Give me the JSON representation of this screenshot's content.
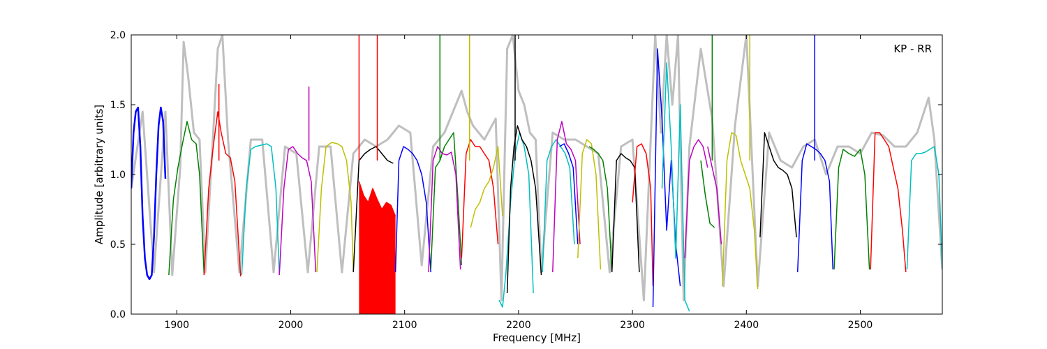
{
  "chart_data": {
    "type": "line",
    "title": "",
    "xlabel": "Frequency [MHz]",
    "ylabel": "Amplitude [arbitrary units]",
    "xlim": [
      1860,
      2572
    ],
    "ylim": [
      0.0,
      2.0
    ],
    "xticks": [
      1900,
      2000,
      2100,
      2200,
      2300,
      2400,
      2500
    ],
    "yticks": [
      0.0,
      0.5,
      1.0,
      1.5,
      2.0
    ],
    "xtick_labels": [
      "1900",
      "2000",
      "2100",
      "2200",
      "2300",
      "2400",
      "2500"
    ],
    "ytick_labels": [
      "0.0",
      "0.5",
      "1.0",
      "1.5",
      "2.0"
    ],
    "annotation": "KP - RR",
    "grid": false,
    "colors": {
      "background_trace": "#bfbfbf",
      "cycle": [
        "#0000ff",
        "#008000",
        "#ff0000",
        "#00bfbf",
        "#bf00bf",
        "#bfbf00",
        "#000000"
      ]
    },
    "band_colors": [
      "#008000",
      "#ff0000",
      "#00bfbf",
      "#bf00bf",
      "#bfbf00",
      "#000000",
      "#ff0000",
      "#0000ff",
      "#008000",
      "#bf00bf",
      "#ff0000",
      "#bfbf00",
      "#00bfbf",
      "#000000",
      "#00bfbf",
      "#bf00bf",
      "#0000ff",
      "#bfbf00",
      "#008000",
      "#000000",
      "#ff0000",
      "#0000ff",
      "#00bfbf",
      "#bf00bf",
      "#008000",
      "#bf00bf",
      "#bfbf00",
      "#000000",
      "#0000ff",
      "#008000",
      "#ff0000",
      "#00bfbf"
    ],
    "series": [
      {
        "color": "#0000ff",
        "x": [
          1860,
          1862,
          1864,
          1866,
          1868,
          1870,
          1872,
          1874,
          1876,
          1878,
          1880,
          1882,
          1884,
          1886,
          1888,
          1890
        ],
        "y": [
          0.9,
          1.3,
          1.45,
          1.48,
          1.2,
          0.7,
          0.4,
          0.28,
          0.25,
          0.28,
          0.55,
          1.0,
          1.35,
          1.48,
          1.38,
          0.97
        ]
      },
      {
        "color": "#008000",
        "x": [
          1893,
          1897,
          1901,
          1905,
          1909,
          1913,
          1917,
          1920,
          1924
        ],
        "y": [
          0.28,
          0.82,
          1.05,
          1.22,
          1.38,
          1.25,
          1.22,
          1.0,
          0.28
        ]
      },
      {
        "color": "#ff0000",
        "x": [
          1924,
          1928,
          1932,
          1936,
          1939,
          1943,
          1947,
          1951,
          1956
        ],
        "y": [
          0.28,
          0.9,
          1.2,
          1.45,
          1.3,
          1.15,
          1.12,
          0.95,
          0.27
        ]
      },
      {
        "color": "#00bfbf",
        "x": [
          1957,
          1961,
          1965,
          1969,
          1974,
          1979,
          1983,
          1987,
          1990
        ],
        "y": [
          0.28,
          0.9,
          1.18,
          1.2,
          1.21,
          1.22,
          1.2,
          0.9,
          0.28
        ]
      },
      {
        "color": "#bf00bf",
        "x": [
          1990,
          1994,
          1998,
          2002,
          2006,
          2010,
          2014,
          2018,
          2022
        ],
        "y": [
          0.28,
          0.9,
          1.18,
          1.2,
          1.15,
          1.12,
          1.1,
          0.95,
          0.3
        ]
      },
      {
        "color": "#bfbf00",
        "x": [
          2023,
          2027,
          2031,
          2036,
          2041,
          2045,
          2049,
          2053,
          2055
        ],
        "y": [
          0.3,
          0.9,
          1.2,
          1.23,
          1.22,
          1.2,
          1.1,
          0.8,
          0.3
        ]
      },
      {
        "color": "#000000",
        "x": [
          2055,
          2060,
          2065,
          2070,
          2075,
          2080,
          2085,
          2090
        ],
        "y": [
          0.3,
          1.1,
          1.15,
          1.18,
          1.2,
          1.15,
          1.1,
          1.08
        ]
      },
      {
        "color": "#ff0000",
        "x": [
          2060,
          2064,
          2068,
          2072,
          2076,
          2080,
          2084,
          2088,
          2092
        ],
        "y": [
          0.95,
          0.85,
          0.8,
          0.9,
          0.82,
          0.75,
          0.8,
          0.78,
          0.7
        ]
      },
      {
        "color": "#0000ff",
        "x": [
          2092,
          2095,
          2099,
          2103,
          2107,
          2111,
          2115,
          2119,
          2123
        ],
        "y": [
          0.3,
          1.1,
          1.2,
          1.18,
          1.15,
          1.1,
          1.0,
          0.8,
          0.3
        ]
      },
      {
        "color": "#008000",
        "x": [
          2123,
          2127,
          2131,
          2135,
          2139,
          2143,
          2147,
          2150
        ],
        "y": [
          0.32,
          1.05,
          1.1,
          1.2,
          1.25,
          1.3,
          0.8,
          0.35
        ]
      },
      {
        "color": "#bf00bf",
        "x": [
          2121,
          2125,
          2129,
          2133,
          2137,
          2141,
          2145,
          2149
        ],
        "y": [
          0.3,
          1.1,
          1.2,
          1.15,
          1.14,
          1.16,
          1.0,
          0.32
        ]
      },
      {
        "color": "#ff0000",
        "x": [
          2150,
          2154,
          2158,
          2162,
          2166,
          2170,
          2174,
          2178,
          2182
        ],
        "y": [
          0.4,
          1.15,
          1.25,
          1.2,
          1.2,
          1.15,
          1.1,
          0.9,
          0.5
        ]
      },
      {
        "color": "#bfbf00",
        "x": [
          2158,
          2162,
          2166,
          2170,
          2174,
          2178,
          2182,
          2186
        ],
        "y": [
          0.62,
          0.75,
          0.8,
          0.9,
          0.95,
          1.05,
          1.2,
          0.7
        ]
      },
      {
        "color": "#00bfbf",
        "x": [
          2183,
          2186,
          2189,
          2193,
          2197,
          2201,
          2205,
          2209,
          2213
        ],
        "y": [
          0.1,
          0.05,
          0.3,
          0.8,
          1.15,
          1.3,
          1.2,
          1.0,
          0.15
        ]
      },
      {
        "color": "#000000",
        "x": [
          2190,
          2193,
          2196,
          2199,
          2203,
          2207,
          2211,
          2215,
          2220
        ],
        "y": [
          0.15,
          0.9,
          1.2,
          1.35,
          1.25,
          1.2,
          1.1,
          0.9,
          0.28
        ]
      },
      {
        "color": "#00bfbf",
        "x": [
          2221,
          2225,
          2229,
          2233,
          2237,
          2241,
          2245,
          2249
        ],
        "y": [
          0.3,
          1.1,
          1.2,
          1.25,
          1.2,
          1.15,
          1.05,
          0.5
        ]
      },
      {
        "color": "#bf00bf",
        "x": [
          2230,
          2234,
          2238,
          2242,
          2246,
          2250,
          2254
        ],
        "y": [
          0.3,
          1.25,
          1.38,
          1.22,
          1.18,
          1.1,
          0.5
        ]
      },
      {
        "color": "#0000ff",
        "x": [
          2236,
          2240,
          2244,
          2248,
          2252
        ],
        "y": [
          1.2,
          1.22,
          1.15,
          1.05,
          0.5
        ]
      },
      {
        "color": "#bfbf00",
        "x": [
          2252,
          2256,
          2260,
          2264,
          2268,
          2272
        ],
        "y": [
          0.4,
          1.15,
          1.25,
          1.22,
          1.0,
          0.32
        ]
      },
      {
        "color": "#008000",
        "x": [
          2262,
          2266,
          2270,
          2274,
          2278,
          2282
        ],
        "y": [
          1.2,
          1.18,
          1.15,
          1.1,
          0.9,
          0.3
        ]
      },
      {
        "color": "#000000",
        "x": [
          2282,
          2286,
          2290,
          2294,
          2298,
          2302,
          2306
        ],
        "y": [
          0.3,
          1.1,
          1.15,
          1.12,
          1.1,
          1.05,
          0.3
        ]
      },
      {
        "color": "#ff0000",
        "x": [
          2300,
          2304,
          2308,
          2312,
          2316,
          2318
        ],
        "y": [
          0.8,
          1.2,
          1.22,
          1.15,
          0.9,
          0.2
        ]
      },
      {
        "color": "#0000ff",
        "x": [
          2318,
          2322,
          2326,
          2330,
          2334,
          2338,
          2342
        ],
        "y": [
          0.05,
          1.9,
          1.4,
          0.6,
          1.1,
          0.5,
          0.2
        ]
      },
      {
        "color": "#00bfbf",
        "x": [
          2326,
          2330,
          2334,
          2338,
          2342,
          2346,
          2350
        ],
        "y": [
          0.9,
          1.8,
          1.2,
          0.4,
          1.5,
          0.1,
          0.02
        ]
      },
      {
        "color": "#bf00bf",
        "x": [
          2346,
          2350,
          2354,
          2358,
          2362,
          2366
        ],
        "y": [
          0.4,
          1.1,
          1.2,
          1.25,
          1.2,
          1.05
        ]
      },
      {
        "color": "#008000",
        "x": [
          2360,
          2364,
          2368,
          2372
        ],
        "y": [
          1.1,
          0.85,
          0.65,
          0.62
        ]
      },
      {
        "color": "#bf00bf",
        "x": [
          2366,
          2370,
          2374,
          2378
        ],
        "y": [
          1.2,
          1.05,
          0.9,
          0.5
        ]
      },
      {
        "color": "#bfbf00",
        "x": [
          2379,
          2383,
          2387,
          2391,
          2395,
          2399,
          2403,
          2407,
          2410
        ],
        "y": [
          0.2,
          1.1,
          1.3,
          1.28,
          1.1,
          1.0,
          0.9,
          0.6,
          0.18
        ]
      },
      {
        "color": "#000000",
        "x": [
          2412,
          2416,
          2420,
          2424,
          2428,
          2432,
          2436,
          2440,
          2444
        ],
        "y": [
          0.55,
          1.3,
          1.2,
          1.1,
          1.05,
          1.03,
          1.0,
          0.9,
          0.55
        ]
      },
      {
        "color": "#0000ff",
        "x": [
          2445,
          2449,
          2453,
          2457,
          2461,
          2465,
          2469,
          2473,
          2476
        ],
        "y": [
          0.3,
          1.1,
          1.22,
          1.2,
          1.18,
          1.15,
          1.1,
          0.95,
          0.32
        ]
      },
      {
        "color": "#008000",
        "x": [
          2477,
          2481,
          2485,
          2490,
          2495,
          2500,
          2504,
          2508
        ],
        "y": [
          0.32,
          1.05,
          1.18,
          1.15,
          1.13,
          1.18,
          1.0,
          0.32
        ]
      },
      {
        "color": "#ff0000",
        "x": [
          2509,
          2513,
          2517,
          2521,
          2525,
          2529,
          2533,
          2537,
          2540
        ],
        "y": [
          0.32,
          1.3,
          1.3,
          1.25,
          1.2,
          1.05,
          0.9,
          0.6,
          0.3
        ]
      },
      {
        "color": "#00bfbf",
        "x": [
          2541,
          2545,
          2549,
          2553,
          2557,
          2561,
          2565,
          2569,
          2572
        ],
        "y": [
          0.32,
          1.1,
          1.15,
          1.15,
          1.16,
          1.18,
          1.2,
          1.0,
          0.32
        ]
      }
    ],
    "background_series": {
      "color": "#bfbf00",
      "x": [
        1860,
        1870,
        1880,
        1890,
        1896,
        1903,
        1906,
        1910,
        1915,
        1920,
        1925,
        1932,
        1936,
        1940,
        1945,
        1955,
        1965,
        1975,
        1985,
        1995,
        2005,
        2015,
        2025,
        2035,
        2045,
        2055,
        2065,
        2075,
        2085,
        2095,
        2105,
        2115,
        2125,
        2135,
        2145,
        2150,
        2155,
        2160,
        2165,
        2170,
        2180,
        2185,
        2190,
        2195,
        2200,
        2205,
        2210,
        2215,
        2220,
        2230,
        2240,
        2250,
        2260,
        2270,
        2280,
        2290,
        2300,
        2310,
        2320,
        2325,
        2330,
        2335,
        2340,
        2345,
        2350,
        2360,
        2370,
        2380,
        2390,
        2400,
        2410,
        2420,
        2430,
        2440,
        2450,
        2460,
        2470,
        2480,
        2490,
        2500,
        2510,
        2520,
        2530,
        2540,
        2550,
        2560,
        2565,
        2572
      ],
      "y": [
        0.9,
        1.45,
        0.3,
        1.45,
        0.28,
        1.05,
        1.95,
        1.7,
        1.3,
        1.25,
        0.3,
        1.3,
        1.9,
        2.0,
        1.25,
        0.3,
        1.25,
        1.25,
        0.3,
        1.2,
        1.15,
        0.3,
        1.2,
        1.2,
        0.3,
        1.15,
        1.25,
        1.2,
        1.25,
        1.35,
        1.3,
        0.35,
        1.2,
        1.3,
        1.5,
        1.6,
        1.45,
        1.35,
        1.3,
        1.25,
        1.4,
        0.1,
        1.9,
        2.0,
        1.6,
        1.5,
        1.3,
        1.25,
        0.3,
        1.3,
        1.25,
        1.25,
        1.2,
        1.15,
        0.3,
        1.2,
        1.25,
        0.1,
        2.0,
        1.3,
        2.0,
        1.5,
        2.0,
        0.1,
        1.2,
        1.9,
        1.4,
        0.2,
        1.35,
        2.0,
        0.2,
        1.3,
        1.1,
        1.05,
        1.2,
        1.25,
        1.0,
        1.2,
        1.2,
        1.15,
        1.3,
        1.28,
        1.2,
        1.2,
        1.3,
        1.55,
        1.25,
        0.32
      ]
    },
    "spikes": [
      {
        "x": 1937,
        "y": 1.65,
        "color": "#ff0000"
      },
      {
        "x": 2016,
        "y": 1.63,
        "color": "#bf00bf"
      },
      {
        "x": 2060,
        "y": 2.0,
        "color": "#ff0000"
      },
      {
        "x": 2076,
        "y": 2.0,
        "color": "#ff0000"
      },
      {
        "x": 2131,
        "y": 2.0,
        "color": "#008000"
      },
      {
        "x": 2157,
        "y": 2.0,
        "color": "#bfbf00"
      },
      {
        "x": 2197,
        "y": 2.0,
        "color": "#000000"
      },
      {
        "x": 2370,
        "y": 2.0,
        "color": "#008000"
      },
      {
        "x": 2403,
        "y": 2.0,
        "color": "#bfbf00"
      },
      {
        "x": 2460,
        "y": 2.0,
        "color": "#0000ff"
      }
    ]
  }
}
